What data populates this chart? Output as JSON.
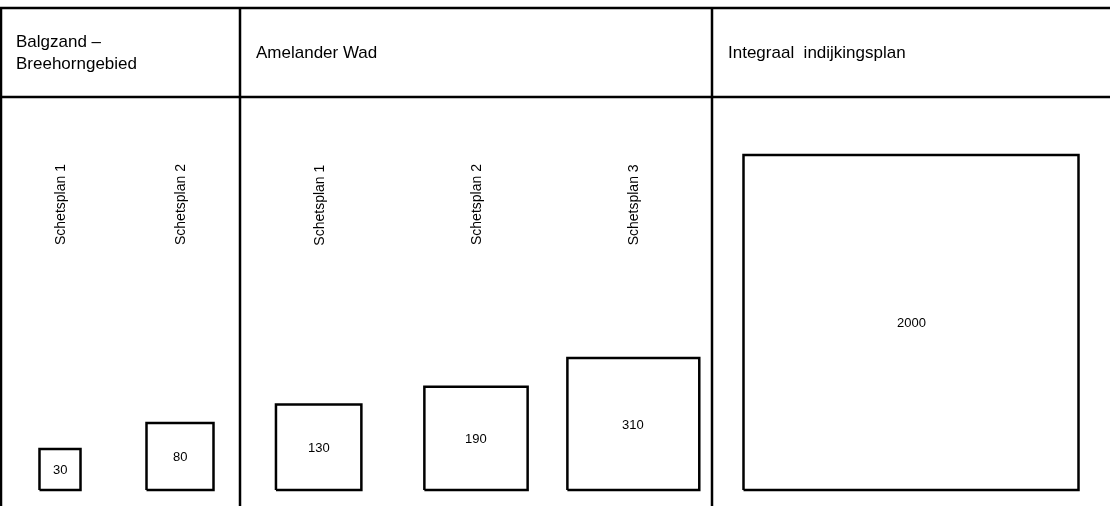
{
  "chart_data": [
    {
      "type": "other",
      "title": "Balgzand –\nBreehorngebied",
      "categories": [
        "Schetsplan 1",
        "Schetsplan 2"
      ],
      "values": [
        30,
        80
      ],
      "data_labels": true
    },
    {
      "type": "other",
      "title": "Amelander Wad",
      "categories": [
        "Schetsplan 1",
        "Schetsplan 2",
        "Schetsplan 3"
      ],
      "values": [
        130,
        190,
        310
      ],
      "data_labels": true
    },
    {
      "type": "other",
      "title": "Integraal  indijkingsplan",
      "categories": [
        null
      ],
      "values": [
        2000
      ],
      "data_labels": true
    }
  ]
}
